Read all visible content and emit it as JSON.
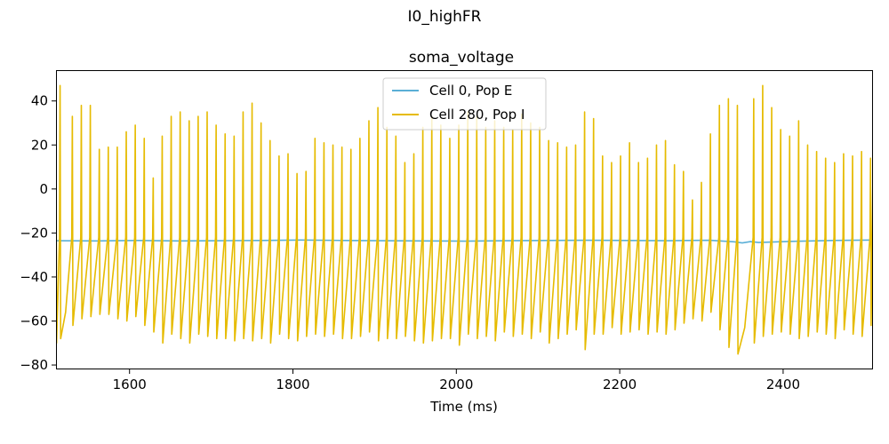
{
  "suptitle": "I0_highFR",
  "chart_data": {
    "type": "line",
    "title": "soma_voltage",
    "xlabel": "Time (ms)",
    "ylabel": "",
    "xlim": [
      1510,
      2510
    ],
    "ylim": [
      -82,
      54
    ],
    "xticks": [
      1600,
      1800,
      2000,
      2200,
      2400
    ],
    "yticks": [
      -80,
      -60,
      -40,
      -20,
      0,
      20,
      40
    ],
    "grid": false,
    "legend_position": "top-center",
    "series": [
      {
        "name": "Cell 0, Pop E",
        "color": "#5aafd6",
        "x": [
          1510,
          1560,
          1610,
          1660,
          1710,
          1760,
          1810,
          1860,
          1910,
          1960,
          2010,
          2060,
          2110,
          2160,
          2210,
          2260,
          2310,
          2340,
          2350,
          2360,
          2370,
          2410,
          2460,
          2510
        ],
        "y": [
          -23.5,
          -23.6,
          -23.4,
          -23.6,
          -23.5,
          -23.4,
          -23.2,
          -23.4,
          -23.5,
          -23.6,
          -23.7,
          -23.5,
          -23.4,
          -23.3,
          -23.4,
          -23.5,
          -23.3,
          -24.0,
          -24.5,
          -23.9,
          -24.3,
          -23.8,
          -23.4,
          -23.2
        ]
      },
      {
        "name": "Cell 280, Pop I",
        "color": "#e6bb00",
        "spikes": {
          "times": [
            1510,
            1515,
            1530,
            1541,
            1552,
            1563,
            1574,
            1585,
            1596,
            1607,
            1618,
            1629,
            1640,
            1651,
            1662,
            1673,
            1684,
            1695,
            1706,
            1717,
            1728,
            1739,
            1750,
            1761,
            1772,
            1783,
            1794,
            1805,
            1816,
            1827,
            1838,
            1849,
            1860,
            1871,
            1882,
            1893,
            1904,
            1915,
            1926,
            1937,
            1948,
            1959,
            1970,
            1981,
            1992,
            2003,
            2014,
            2025,
            2036,
            2047,
            2058,
            2069,
            2080,
            2091,
            2102,
            2113,
            2124,
            2135,
            2146,
            2157,
            2168,
            2179,
            2190,
            2201,
            2212,
            2223,
            2234,
            2245,
            2256,
            2267,
            2278,
            2289,
            2300,
            2311,
            2322,
            2333,
            2344,
            2364,
            2375,
            2386,
            2397,
            2408,
            2419,
            2430,
            2441,
            2452,
            2463,
            2474,
            2485,
            2496,
            2507
          ],
          "peaks": [
            47,
            47,
            33,
            38,
            38,
            18,
            19,
            19,
            26,
            29,
            23,
            5,
            24,
            33,
            35,
            31,
            33,
            35,
            29,
            25,
            24,
            35,
            39,
            30,
            22,
            15,
            16,
            7,
            8,
            23,
            21,
            20,
            19,
            18,
            23,
            31,
            37,
            28,
            24,
            12,
            16,
            28,
            33,
            29,
            23,
            29,
            35,
            33,
            28,
            31,
            28,
            27,
            34,
            30,
            28,
            22,
            21,
            19,
            20,
            35,
            32,
            15,
            12,
            15,
            21,
            12,
            14,
            20,
            22,
            11,
            8,
            -5,
            3,
            25,
            38,
            41,
            38,
            41,
            47,
            37,
            27,
            24,
            31,
            20,
            17,
            14,
            12,
            16,
            15,
            17,
            14
          ],
          "troughs": [
            -70,
            -68,
            -62,
            -59,
            -58,
            -57,
            -57,
            -59,
            -60,
            -58,
            -62,
            -65,
            -70,
            -66,
            -68,
            -70,
            -66,
            -67,
            -68,
            -68,
            -69,
            -68,
            -69,
            -68,
            -70,
            -66,
            -68,
            -69,
            -67,
            -66,
            -67,
            -66,
            -68,
            -68,
            -67,
            -65,
            -69,
            -68,
            -68,
            -67,
            -69,
            -70,
            -69,
            -68,
            -68,
            -71,
            -66,
            -68,
            -67,
            -69,
            -65,
            -67,
            -66,
            -68,
            -65,
            -70,
            -68,
            -66,
            -64,
            -73,
            -66,
            -66,
            -63,
            -66,
            -65,
            -64,
            -66,
            -65,
            -66,
            -64,
            -61,
            -59,
            -60,
            -56,
            -64,
            -72,
            -75,
            -70,
            -67,
            -66,
            -65,
            -66,
            -68,
            -67,
            -65,
            -66,
            -68,
            -64,
            -66,
            -67,
            -62
          ],
          "start": -72,
          "end": 8
        }
      }
    ]
  }
}
